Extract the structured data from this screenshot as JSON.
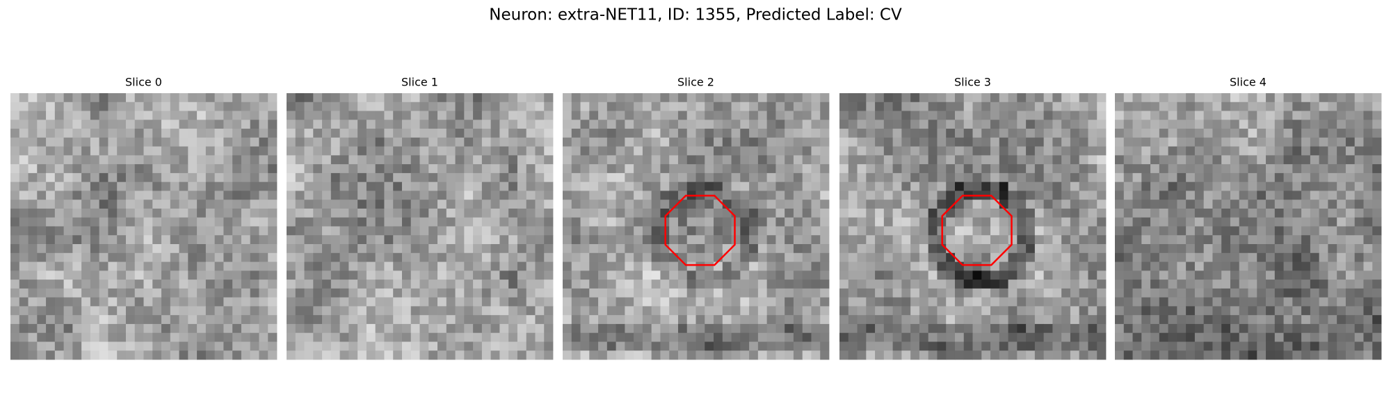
{
  "title": "Neuron: extra-NET11, ID: 1355, Predicted Label: CV",
  "panels": [
    {
      "title": "Slice 0"
    },
    {
      "title": "Slice 1"
    },
    {
      "title": "Slice 2"
    },
    {
      "title": "Slice 3"
    },
    {
      "title": "Slice 4"
    }
  ]
}
